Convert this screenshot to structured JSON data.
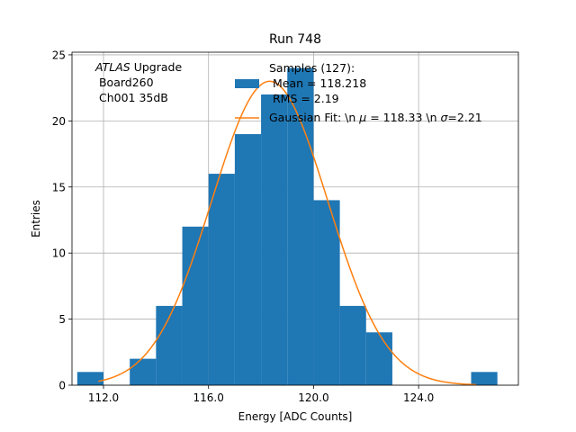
{
  "chart_data": {
    "type": "bar",
    "title": "Run 748",
    "xlabel": "Energy [ADC Counts]",
    "ylabel": "Entries",
    "xlim": [
      110.8,
      127.8
    ],
    "ylim": [
      0,
      25.2
    ],
    "xticks": [
      "112.0",
      "116.0",
      "120.0",
      "124.0"
    ],
    "xtick_values": [
      112,
      116,
      120,
      124
    ],
    "yticks": [
      "0",
      "5",
      "10",
      "15",
      "20",
      "25"
    ],
    "ytick_values": [
      0,
      5,
      10,
      15,
      20,
      25
    ],
    "grid": true,
    "bar_color": "#1f77b4",
    "fit_color": "#ff7f0e",
    "histogram": {
      "bin_width": 1,
      "bins": [
        {
          "x0": 111,
          "count": 1
        },
        {
          "x0": 113,
          "count": 2
        },
        {
          "x0": 114,
          "count": 6
        },
        {
          "x0": 115,
          "count": 12
        },
        {
          "x0": 116,
          "count": 16
        },
        {
          "x0": 117,
          "count": 19
        },
        {
          "x0": 118,
          "count": 22
        },
        {
          "x0": 119,
          "count": 24
        },
        {
          "x0": 120,
          "count": 14
        },
        {
          "x0": 121,
          "count": 6
        },
        {
          "x0": 122,
          "count": 4
        },
        {
          "x0": 126,
          "count": 1
        }
      ]
    },
    "fit": {
      "mu": 118.33,
      "sigma": 2.21,
      "amplitude": 23.0,
      "x_start": 111.8,
      "x_end": 126.2
    },
    "annotation": {
      "line1_italic": "ATLAS",
      "line1_rest": " Upgrade",
      "line2": " Board260",
      "line3": " Ch001 35dB"
    },
    "legend": {
      "placement": "top-center",
      "hist_lines": [
        "Samples (127):",
        " Mean = 118.218",
        " RMS = 2.19"
      ],
      "fit_label_prefix": "Gaussian Fit: \\n ",
      "fit_label_mu_sym": "μ",
      "fit_label_mu_val": " = 118.33 \\n ",
      "fit_label_sigma_sym": "σ",
      "fit_label_sigma_val": "=2.21"
    }
  }
}
